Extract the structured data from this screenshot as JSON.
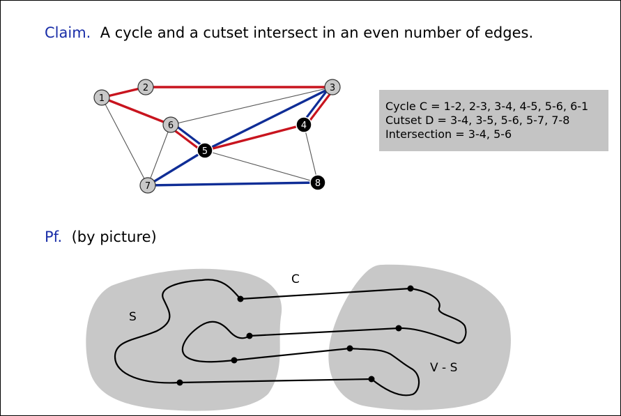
{
  "claim": {
    "label": "Claim.",
    "text": "A cycle and a cutset intersect in an even number of edges."
  },
  "info": {
    "cycle": "Cycle  C = 1-2, 2-3, 3-4, 4-5, 5-6, 6-1",
    "cutset": "Cutset D = 3-4, 3-5, 5-6, 5-7, 7-8",
    "intersection": "Intersection = 3-4, 5-6"
  },
  "graph": {
    "nodes": [
      {
        "id": "1",
        "label": "1",
        "in_cut_set": false
      },
      {
        "id": "2",
        "label": "2",
        "in_cut_set": false
      },
      {
        "id": "3",
        "label": "3",
        "in_cut_set": false
      },
      {
        "id": "4",
        "label": "4",
        "in_cut_set": true
      },
      {
        "id": "5",
        "label": "5",
        "in_cut_set": true
      },
      {
        "id": "6",
        "label": "6",
        "in_cut_set": false
      },
      {
        "id": "7",
        "label": "7",
        "in_cut_set": false
      },
      {
        "id": "8",
        "label": "8",
        "in_cut_set": true
      }
    ],
    "edges": [
      {
        "from": "1",
        "to": "2",
        "type": "cycle"
      },
      {
        "from": "2",
        "to": "3",
        "type": "cycle"
      },
      {
        "from": "3",
        "to": "4",
        "type": "both"
      },
      {
        "from": "4",
        "to": "5",
        "type": "cycle"
      },
      {
        "from": "5",
        "to": "6",
        "type": "both"
      },
      {
        "from": "6",
        "to": "1",
        "type": "cycle"
      },
      {
        "from": "3",
        "to": "5",
        "type": "cutset"
      },
      {
        "from": "5",
        "to": "7",
        "type": "cutset"
      },
      {
        "from": "7",
        "to": "8",
        "type": "cutset"
      },
      {
        "from": "1",
        "to": "7",
        "type": "plain"
      },
      {
        "from": "6",
        "to": "3",
        "type": "plain"
      },
      {
        "from": "6",
        "to": "7",
        "type": "plain"
      },
      {
        "from": "4",
        "to": "8",
        "type": "plain"
      },
      {
        "from": "5",
        "to": "8",
        "type": "plain"
      }
    ],
    "colors": {
      "cycle": "#c8141e",
      "cutset": "#0f2d96",
      "plain": "#555555",
      "node_fill": "#c8c8c8",
      "cut_node_fill": "#000000"
    }
  },
  "proof": {
    "label": "Pf.",
    "text": "(by picture)",
    "label_c": "C",
    "label_s": "S",
    "label_vs": "V - S",
    "region_color": "#c8c8c8"
  }
}
